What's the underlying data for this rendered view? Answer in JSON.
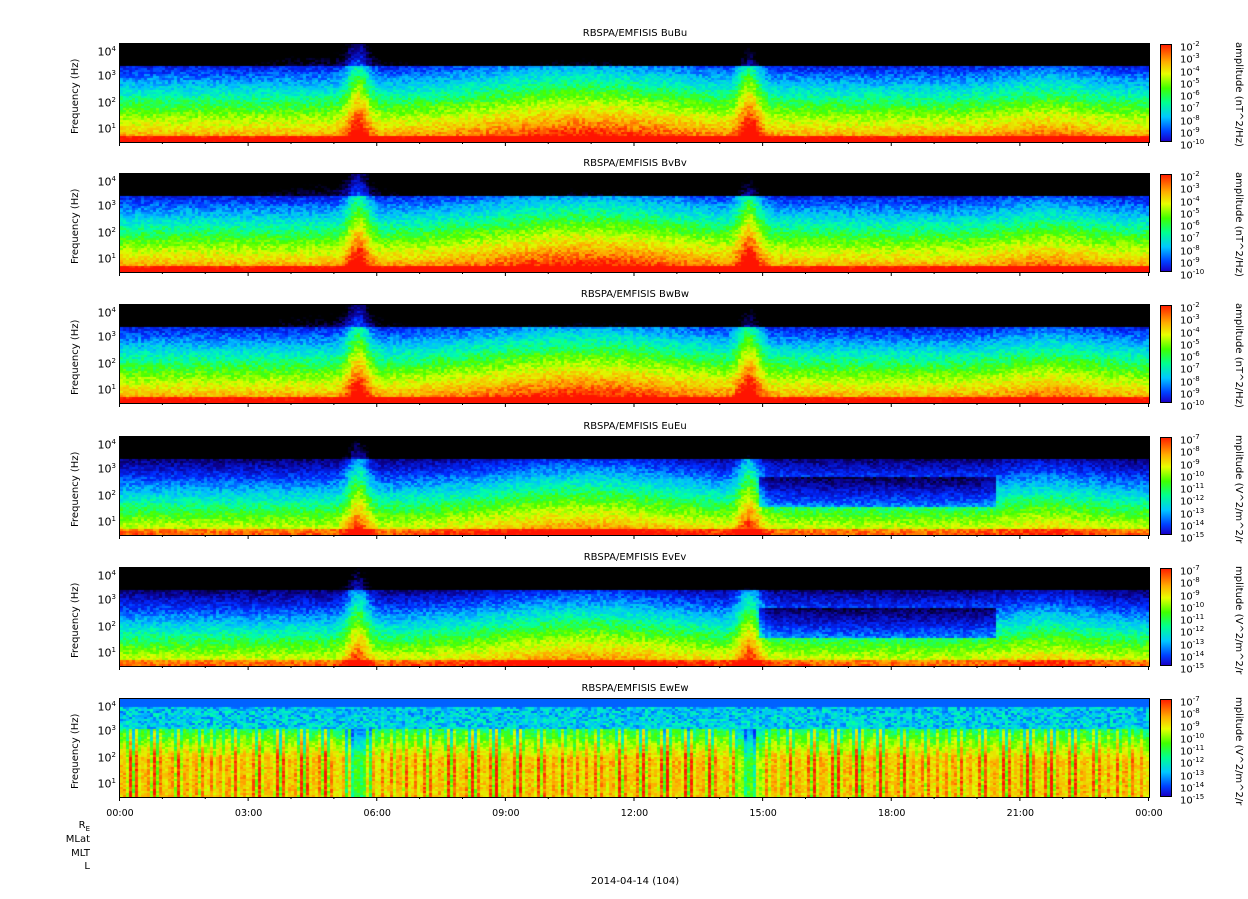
{
  "chart_data": [
    {
      "type": "heatmap",
      "title": "RBSPA/EMFISIS  BuBu",
      "ylabel": "Frequency (Hz)",
      "zlabel": "amplitude (nT^2/Hz)",
      "yticks": [
        "10^1",
        "10^2",
        "10^3",
        "10^4"
      ],
      "zticks": [
        "10^-2",
        "10^-3",
        "10^-4",
        "10^-5",
        "10^-6",
        "10^-7",
        "10^-8",
        "10^-9",
        "10^-10"
      ],
      "yscale": "log",
      "zscale": "log"
    },
    {
      "type": "heatmap",
      "title": "RBSPA/EMFISIS  BvBv",
      "ylabel": "Frequency (Hz)",
      "zlabel": "amplitude (nT^2/Hz)",
      "yticks": [
        "10^1",
        "10^2",
        "10^3",
        "10^4"
      ],
      "zticks": [
        "10^-2",
        "10^-3",
        "10^-4",
        "10^-5",
        "10^-6",
        "10^-7",
        "10^-8",
        "10^-9",
        "10^-10"
      ],
      "yscale": "log",
      "zscale": "log"
    },
    {
      "type": "heatmap",
      "title": "RBSPA/EMFISIS  BwBw",
      "ylabel": "Frequency (Hz)",
      "zlabel": "amplitude (nT^2/Hz)",
      "yticks": [
        "10^1",
        "10^2",
        "10^3",
        "10^4"
      ],
      "zticks": [
        "10^-2",
        "10^-3",
        "10^-4",
        "10^-5",
        "10^-6",
        "10^-7",
        "10^-8",
        "10^-9",
        "10^-10"
      ],
      "yscale": "log",
      "zscale": "log"
    },
    {
      "type": "heatmap",
      "title": "RBSPA/EMFISIS  EuEu",
      "ylabel": "Frequency (Hz)",
      "zlabel": "mplitude (V^2/m^2/r",
      "yticks": [
        "10^1",
        "10^2",
        "10^3",
        "10^4"
      ],
      "zticks": [
        "10^-7",
        "10^-8",
        "10^-9",
        "10^-10",
        "10^-11",
        "10^-12",
        "10^-13",
        "10^-14",
        "10^-15"
      ],
      "yscale": "log",
      "zscale": "log"
    },
    {
      "type": "heatmap",
      "title": "RBSPA/EMFISIS  EvEv",
      "ylabel": "Frequency (Hz)",
      "zlabel": "mplitude (V^2/m^2/r",
      "yticks": [
        "10^1",
        "10^2",
        "10^3",
        "10^4"
      ],
      "zticks": [
        "10^-7",
        "10^-8",
        "10^-9",
        "10^-10",
        "10^-11",
        "10^-12",
        "10^-13",
        "10^-14",
        "10^-15"
      ],
      "yscale": "log",
      "zscale": "log"
    },
    {
      "type": "heatmap",
      "title": "RBSPA/EMFISIS  EwEw",
      "ylabel": "Frequency (Hz)",
      "zlabel": "mplitude (V^2/m^2/r",
      "yticks": [
        "10^1",
        "10^2",
        "10^3",
        "10^4"
      ],
      "zticks": [
        "10^-7",
        "10^-8",
        "10^-9",
        "10^-10",
        "10^-11",
        "10^-12",
        "10^-13",
        "10^-14",
        "10^-15"
      ],
      "yscale": "log",
      "zscale": "log"
    }
  ],
  "x_axis": {
    "ticks": [
      "00:00",
      "03:00",
      "06:00",
      "09:00",
      "12:00",
      "15:00",
      "18:00",
      "21:00",
      "00:00"
    ],
    "extra_labels": [
      "R_E",
      "MLat",
      "MLT",
      "L"
    ],
    "date_label": "2014-04-14 (104)"
  }
}
